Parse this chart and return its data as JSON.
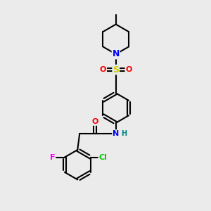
{
  "background_color": "#ebebeb",
  "bond_color": "#000000",
  "atom_colors": {
    "N": "#0000ff",
    "O": "#ff0000",
    "S": "#cccc00",
    "F": "#ff00ff",
    "Cl": "#00cc00",
    "H": "#008080",
    "C": "#000000"
  },
  "figsize": [
    3.0,
    3.0
  ],
  "dpi": 100
}
